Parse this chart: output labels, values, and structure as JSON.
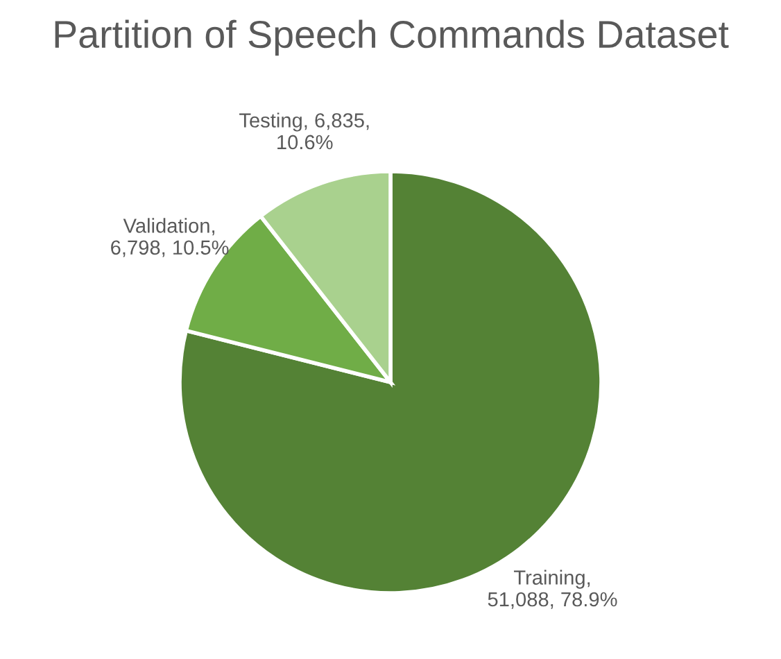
{
  "chart_data": {
    "type": "pie",
    "title": "Partition of Speech Commands Dataset",
    "categories": [
      "Training,\n51,088, 78.9%",
      "Validation,\n6,798, 10.5%",
      "Testing, 6,835,\n10.6%"
    ],
    "values": [
      51088,
      6798,
      6835
    ],
    "colors": [
      "#548235",
      "#70ad47",
      "#a9d18e"
    ],
    "legend": false
  }
}
